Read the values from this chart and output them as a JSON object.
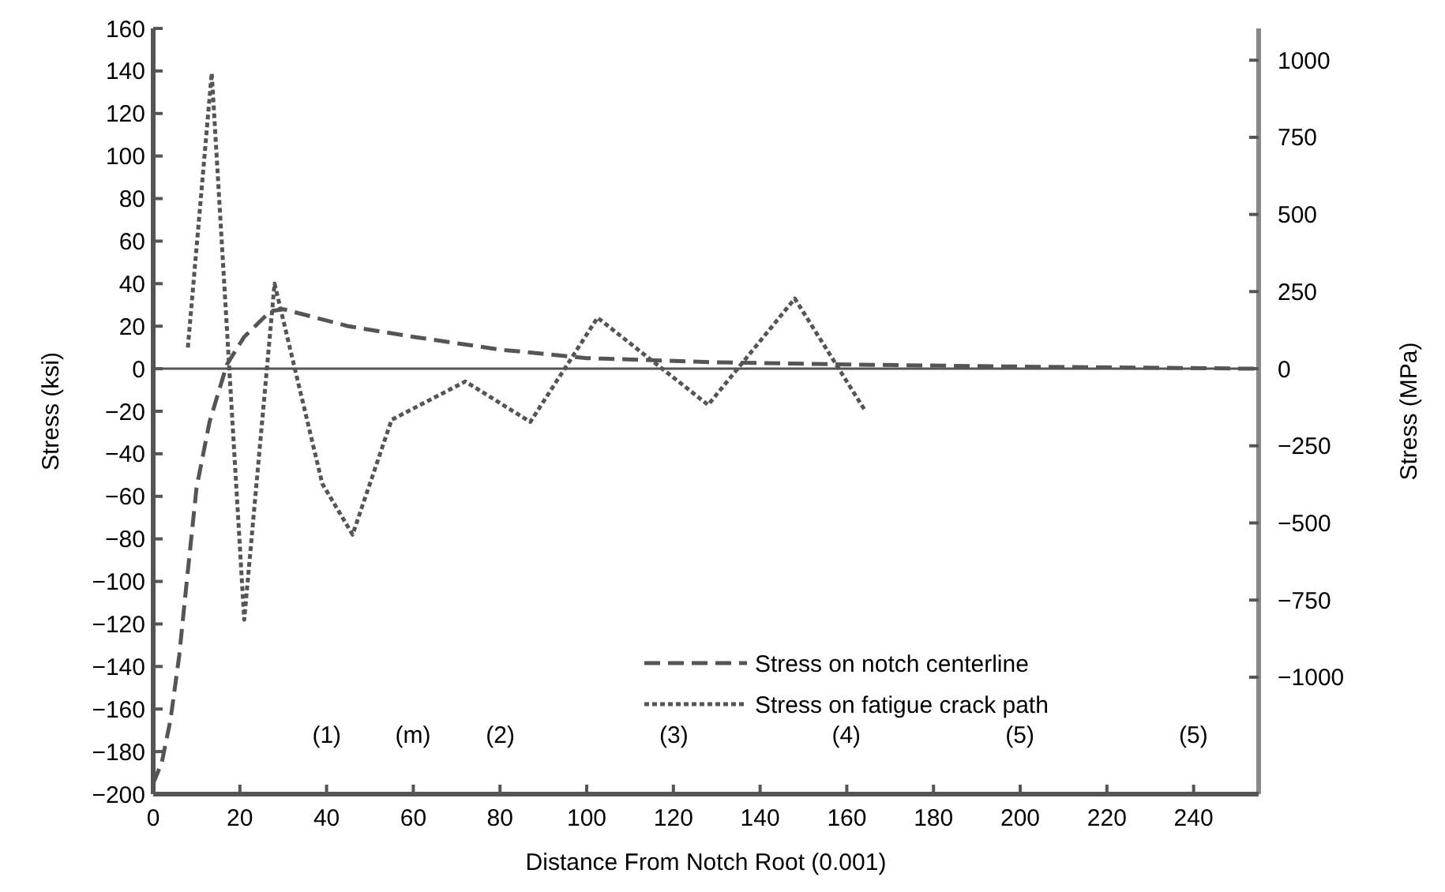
{
  "chart_data": {
    "type": "line",
    "xlabel": "Distance From Notch Root (0.001)",
    "ylabel": "Stress (ksi)",
    "y2label": "Stress (MPa)",
    "xlim": [
      0,
      255
    ],
    "xticks": [
      0,
      20,
      40,
      60,
      80,
      100,
      120,
      140,
      160,
      180,
      200,
      220,
      240
    ],
    "ylim": [
      -200,
      160
    ],
    "yticks": [
      {
        "value": -200,
        "label": "−200"
      },
      {
        "value": -180,
        "label": "−180"
      },
      {
        "value": -160,
        "label": "−160"
      },
      {
        "value": -140,
        "label": "−140"
      },
      {
        "value": -120,
        "label": "−120"
      },
      {
        "value": -100,
        "label": "−100"
      },
      {
        "value": -80,
        "label": "−80"
      },
      {
        "value": -60,
        "label": "−60"
      },
      {
        "value": -40,
        "label": "−40"
      },
      {
        "value": -20,
        "label": "−20"
      },
      0,
      20,
      40,
      60,
      80,
      100,
      120,
      140,
      160
    ],
    "y2lim": [
      -1379,
      1103
    ],
    "y2ticks": [
      {
        "value": -1000,
        "label": "−1000"
      },
      {
        "value": -750,
        "label": "−750"
      },
      {
        "value": -500,
        "label": "−500"
      },
      {
        "value": -250,
        "label": "−250"
      },
      0,
      250,
      500,
      750,
      1000
    ],
    "legend": "bottom right",
    "grid": false,
    "ref_lines": [
      {
        "axis": "y",
        "value": 0,
        "color": "#555555",
        "line_style": "solid"
      }
    ],
    "annotations": [
      "(1)",
      "(m)",
      "(2)",
      "(3)",
      "(4)",
      "(5)",
      "(5)"
    ],
    "series": [
      {
        "name": "Stress on notch centerline",
        "color": "#555555",
        "line_style": "dashed",
        "x": [
          0,
          2,
          4,
          6,
          8,
          10,
          13,
          17,
          21,
          27,
          30,
          45,
          60,
          80,
          100,
          130,
          160,
          200,
          255
        ],
        "values": [
          -195,
          -185,
          -165,
          -135,
          -95,
          -56,
          -25,
          2,
          15,
          27,
          28,
          20,
          15,
          9,
          5,
          3,
          2,
          1,
          0
        ]
      },
      {
        "name": "Stress on fatigue crack path",
        "color": "#555555",
        "line_style": "dotted",
        "x": [
          8,
          13.5,
          21,
          28,
          39,
          46,
          55,
          72,
          87,
          102.5,
          128,
          148,
          164
        ],
        "values": [
          10,
          139,
          -118,
          40,
          -54,
          -78,
          -24,
          -6,
          -25,
          24,
          -17,
          33,
          -19
        ]
      }
    ]
  }
}
